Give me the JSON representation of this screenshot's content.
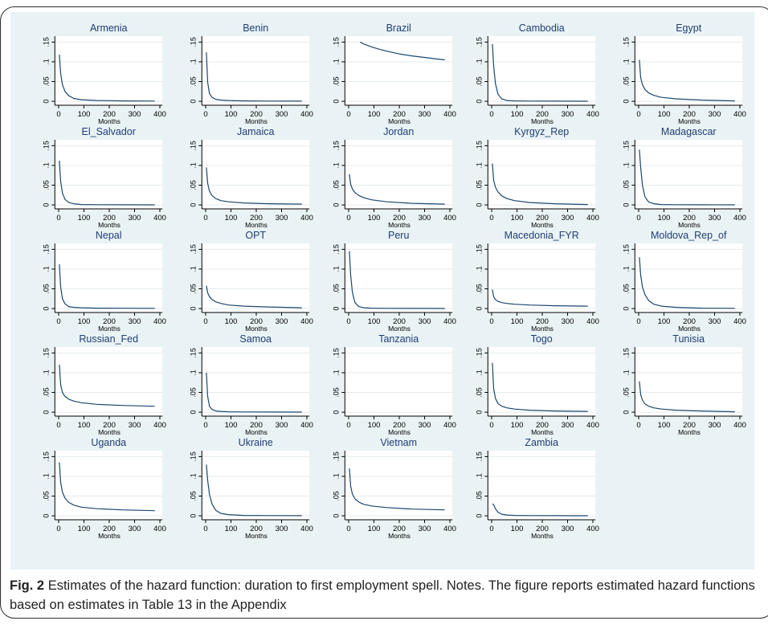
{
  "caption": {
    "label": "Fig. 2",
    "text": "Estimates of the hazard function: duration to first employment spell. Notes. The figure reports estimated hazard functions based on estimates in Table 13 in the Appendix"
  },
  "colors": {
    "panel_bg": "#e9f2f5",
    "plot_bg": "#ffffff",
    "title": "#1f3e74",
    "line": "#1a476f",
    "grid": "#e3ebee"
  },
  "chart_data": {
    "type": "line",
    "layout": "small-multiples 5x5",
    "xlabel": "Months",
    "xlim": [
      -15,
      410
    ],
    "ylim": [
      -0.01,
      0.165
    ],
    "xticks": [
      0,
      100,
      200,
      300,
      400
    ],
    "yticks": [
      0,
      0.05,
      0.1,
      0.15
    ],
    "ytick_labels": [
      "0",
      ".05",
      ".1",
      ".15"
    ],
    "grid": true,
    "panels": [
      {
        "title": "Armenia",
        "x": [
          3,
          8,
          15,
          25,
          40,
          60,
          90,
          150,
          250,
          380
        ],
        "y": [
          0.118,
          0.07,
          0.042,
          0.025,
          0.014,
          0.007,
          0.004,
          0.002,
          0.001,
          0.0005
        ]
      },
      {
        "title": "Benin",
        "x": [
          3,
          8,
          15,
          25,
          40,
          60,
          90,
          150,
          250,
          380
        ],
        "y": [
          0.124,
          0.048,
          0.02,
          0.01,
          0.005,
          0.003,
          0.002,
          0.001,
          0.0005,
          0.0003
        ]
      },
      {
        "title": "Brazil",
        "x": [
          45,
          60,
          90,
          120,
          150,
          200,
          250,
          300,
          350,
          380
        ],
        "y": [
          0.15,
          0.145,
          0.138,
          0.132,
          0.127,
          0.12,
          0.115,
          0.111,
          0.107,
          0.105
        ]
      },
      {
        "title": "Cambodia",
        "x": [
          3,
          8,
          15,
          25,
          40,
          60,
          90,
          150,
          250,
          380
        ],
        "y": [
          0.145,
          0.09,
          0.045,
          0.018,
          0.006,
          0.002,
          0.001,
          0.0005,
          0.0003,
          0.0002
        ]
      },
      {
        "title": "Egypt",
        "x": [
          3,
          8,
          15,
          25,
          40,
          60,
          90,
          150,
          250,
          380
        ],
        "y": [
          0.105,
          0.06,
          0.042,
          0.03,
          0.021,
          0.015,
          0.01,
          0.006,
          0.003,
          0.001
        ]
      },
      {
        "title": "El_Salvador",
        "x": [
          3,
          8,
          15,
          25,
          40,
          60,
          90,
          150,
          250,
          380
        ],
        "y": [
          0.112,
          0.06,
          0.03,
          0.014,
          0.006,
          0.003,
          0.001,
          0.0005,
          0.0003,
          0.0002
        ]
      },
      {
        "title": "Jamaica",
        "x": [
          3,
          8,
          15,
          25,
          40,
          60,
          90,
          150,
          250,
          380
        ],
        "y": [
          0.095,
          0.055,
          0.035,
          0.024,
          0.016,
          0.011,
          0.008,
          0.005,
          0.003,
          0.002
        ]
      },
      {
        "title": "Jordan",
        "x": [
          3,
          8,
          15,
          25,
          40,
          60,
          90,
          150,
          250,
          380
        ],
        "y": [
          0.078,
          0.052,
          0.04,
          0.031,
          0.024,
          0.018,
          0.013,
          0.008,
          0.004,
          0.002
        ]
      },
      {
        "title": "Kyrgyz_Rep",
        "x": [
          3,
          8,
          15,
          25,
          40,
          60,
          90,
          150,
          250,
          380
        ],
        "y": [
          0.105,
          0.062,
          0.045,
          0.033,
          0.023,
          0.016,
          0.011,
          0.006,
          0.003,
          0.001
        ]
      },
      {
        "title": "Madagascar",
        "x": [
          3,
          8,
          15,
          25,
          40,
          60,
          90,
          150,
          250,
          380
        ],
        "y": [
          0.14,
          0.095,
          0.05,
          0.02,
          0.007,
          0.003,
          0.001,
          0.0005,
          0.0003,
          0.0002
        ]
      },
      {
        "title": "Nepal",
        "x": [
          3,
          8,
          15,
          25,
          40,
          60,
          90,
          150,
          250,
          380
        ],
        "y": [
          0.112,
          0.055,
          0.025,
          0.012,
          0.005,
          0.003,
          0.002,
          0.001,
          0.0008,
          0.0005
        ]
      },
      {
        "title": "OPT",
        "x": [
          3,
          8,
          15,
          25,
          40,
          60,
          90,
          150,
          250,
          380
        ],
        "y": [
          0.058,
          0.04,
          0.03,
          0.023,
          0.017,
          0.013,
          0.009,
          0.006,
          0.004,
          0.002
        ]
      },
      {
        "title": "Peru",
        "x": [
          3,
          8,
          15,
          25,
          40,
          60,
          90,
          150,
          250,
          380
        ],
        "y": [
          0.145,
          0.085,
          0.04,
          0.015,
          0.005,
          0.002,
          0.001,
          0.0005,
          0.0003,
          0.0002
        ]
      },
      {
        "title": "Macedonia_FYR",
        "x": [
          3,
          8,
          15,
          25,
          40,
          60,
          90,
          150,
          250,
          380
        ],
        "y": [
          0.048,
          0.03,
          0.023,
          0.018,
          0.015,
          0.013,
          0.011,
          0.009,
          0.007,
          0.006
        ]
      },
      {
        "title": "Moldova_Rep_of",
        "x": [
          3,
          8,
          15,
          25,
          40,
          60,
          90,
          150,
          250,
          380
        ],
        "y": [
          0.13,
          0.085,
          0.055,
          0.035,
          0.02,
          0.011,
          0.006,
          0.003,
          0.001,
          0.0005
        ]
      },
      {
        "title": "Russian_Fed",
        "x": [
          3,
          8,
          15,
          25,
          40,
          60,
          90,
          150,
          250,
          380
        ],
        "y": [
          0.12,
          0.07,
          0.05,
          0.04,
          0.033,
          0.028,
          0.024,
          0.02,
          0.017,
          0.015
        ]
      },
      {
        "title": "Samoa",
        "x": [
          3,
          8,
          15,
          25,
          40,
          60,
          90,
          150,
          250,
          380
        ],
        "y": [
          0.1,
          0.04,
          0.015,
          0.007,
          0.003,
          0.002,
          0.001,
          0.0005,
          0.0003,
          0.0002
        ]
      },
      {
        "title": "Tanzania",
        "x": [],
        "y": []
      },
      {
        "title": "Togo",
        "x": [
          3,
          8,
          15,
          25,
          40,
          60,
          90,
          150,
          250,
          380
        ],
        "y": [
          0.125,
          0.06,
          0.035,
          0.022,
          0.015,
          0.011,
          0.008,
          0.005,
          0.003,
          0.002
        ]
      },
      {
        "title": "Tunisia",
        "x": [
          3,
          8,
          15,
          25,
          40,
          60,
          90,
          150,
          250,
          380
        ],
        "y": [
          0.078,
          0.045,
          0.03,
          0.021,
          0.015,
          0.011,
          0.008,
          0.005,
          0.003,
          0.001
        ]
      },
      {
        "title": "Uganda",
        "x": [
          3,
          8,
          15,
          25,
          40,
          60,
          90,
          150,
          250,
          380
        ],
        "y": [
          0.135,
          0.085,
          0.06,
          0.045,
          0.034,
          0.027,
          0.022,
          0.018,
          0.015,
          0.013
        ]
      },
      {
        "title": "Ukraine",
        "x": [
          3,
          8,
          15,
          25,
          40,
          60,
          90,
          150,
          250,
          380
        ],
        "y": [
          0.13,
          0.09,
          0.055,
          0.03,
          0.014,
          0.006,
          0.003,
          0.001,
          0.0005,
          0.0003
        ]
      },
      {
        "title": "Vietnam",
        "x": [
          3,
          8,
          15,
          25,
          40,
          60,
          90,
          150,
          250,
          380
        ],
        "y": [
          0.12,
          0.075,
          0.055,
          0.043,
          0.035,
          0.029,
          0.025,
          0.021,
          0.017,
          0.015
        ]
      },
      {
        "title": "Zambia",
        "x": [
          3,
          8,
          15,
          25,
          40,
          60,
          90,
          150,
          250,
          380
        ],
        "y": [
          0.03,
          0.028,
          0.018,
          0.009,
          0.004,
          0.002,
          0.001,
          0.0005,
          0.0003,
          0.0002
        ]
      }
    ]
  }
}
